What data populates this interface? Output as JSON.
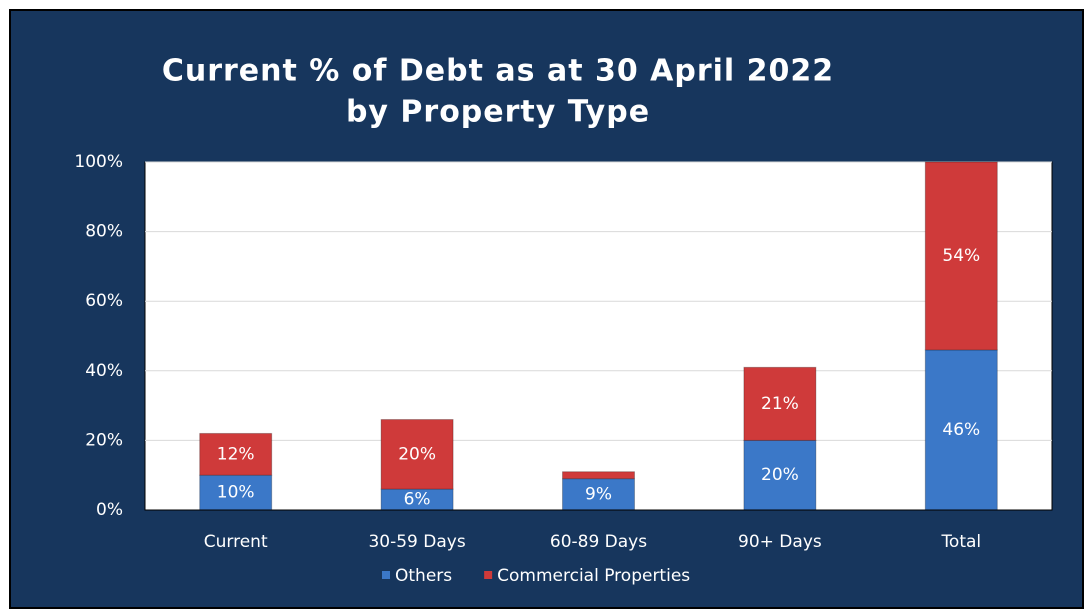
{
  "chart_data": {
    "type": "stacked_bar",
    "title": [
      "Current % of Debt as at 30 April 2022",
      "by Property Type"
    ],
    "categories": [
      "Current",
      "30-59 Days",
      "60-89 Days",
      "90+ Days",
      "Total"
    ],
    "series": [
      {
        "name": "Others",
        "color": "#3b78c8",
        "values": [
          10,
          6,
          9,
          20,
          46
        ],
        "value_labels": [
          "10%",
          "6%",
          "9%",
          "20%",
          "46%"
        ]
      },
      {
        "name": "Commercial Properties",
        "color": "#cf3a3a",
        "values": [
          12,
          20,
          2,
          21,
          54
        ],
        "value_labels": [
          "12%",
          "20%",
          null,
          "21%",
          "54%"
        ]
      }
    ],
    "ylim": [
      0,
      100
    ],
    "yticks": [
      {
        "value": 0,
        "label": "0%"
      },
      {
        "value": 20,
        "label": "20%"
      },
      {
        "value": 40,
        "label": "40%"
      },
      {
        "value": 60,
        "label": "60%"
      },
      {
        "value": 80,
        "label": "80%"
      },
      {
        "value": 100,
        "label": "100%"
      }
    ],
    "grid": true,
    "legend": "bottom"
  }
}
